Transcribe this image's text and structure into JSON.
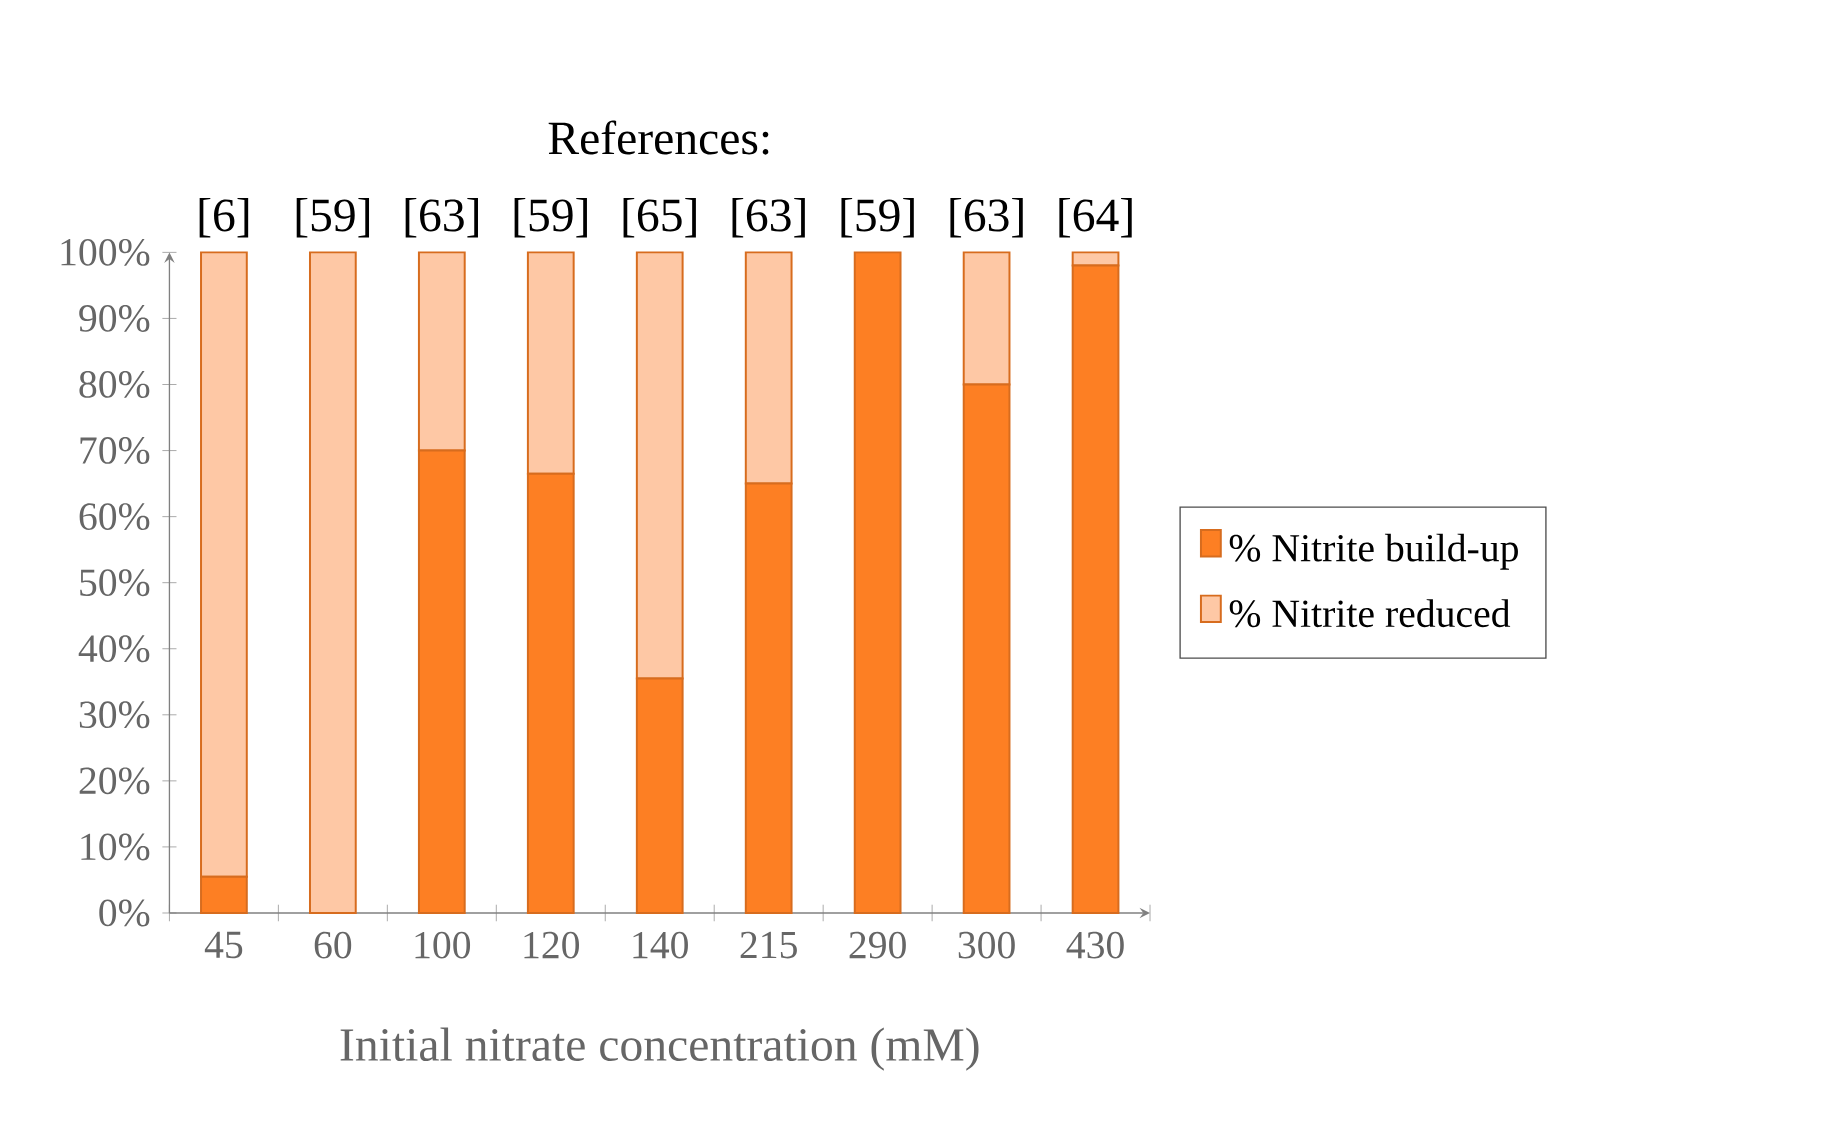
{
  "chart_data": {
    "type": "bar",
    "stacked": true,
    "xlabel": "Initial nitrate concentration (mM)",
    "categories": [
      "45",
      "60",
      "100",
      "120",
      "140",
      "215",
      "290",
      "300",
      "430"
    ],
    "series": [
      {
        "name": "% Nitrite build-up",
        "color": "#fd7f23",
        "values": [
          5.5,
          0,
          70,
          66.5,
          35.5,
          65,
          100,
          80,
          98
        ]
      },
      {
        "name": "% Nitrite reduced",
        "color": "#fec8a5",
        "values": [
          94.5,
          100,
          30,
          33.5,
          64.5,
          35,
          0,
          20,
          2
        ]
      }
    ],
    "ylim": [
      0,
      100
    ],
    "yticks": [
      {
        "value": 0,
        "label": "0%"
      },
      {
        "value": 10,
        "label": "10%"
      },
      {
        "value": 20,
        "label": "20%"
      },
      {
        "value": 30,
        "label": "30%"
      },
      {
        "value": 40,
        "label": "40%"
      },
      {
        "value": 50,
        "label": "50%"
      },
      {
        "value": 60,
        "label": "60%"
      },
      {
        "value": 70,
        "label": "70%"
      },
      {
        "value": 80,
        "label": "80%"
      },
      {
        "value": 90,
        "label": "90%"
      },
      {
        "value": 100,
        "label": "100%"
      }
    ],
    "legend": "right",
    "annotations": [
      "References:",
      "[6]",
      "[59]",
      "[63]",
      "[59]",
      "[65]",
      "[63]",
      "[59]",
      "[63]",
      "[64]"
    ]
  }
}
